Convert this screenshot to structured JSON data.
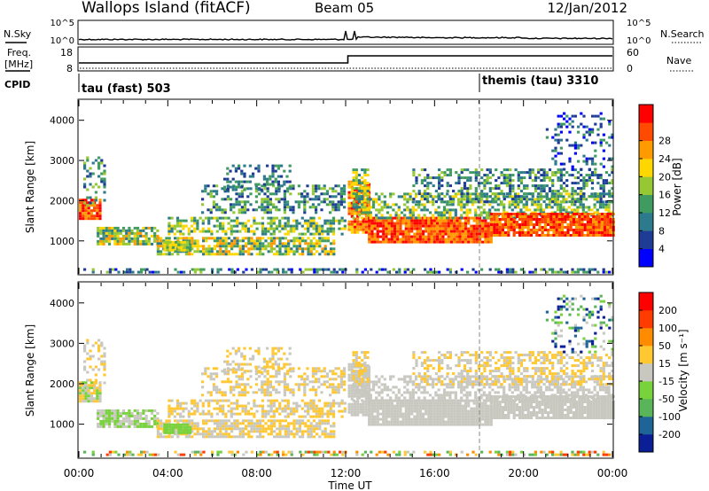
{
  "header": {
    "station": "Wallops Island (fitACF)",
    "beam": "Beam 05",
    "date": "12/Jan/2012"
  },
  "noise_panel": {
    "left_label": "N.Sky",
    "right_label": "N.Search",
    "ticks_left": [
      "10^5",
      "10^0"
    ],
    "ticks_right": [
      "10^5",
      "10^0"
    ]
  },
  "freq_panel": {
    "label_top": "Freq.",
    "label_bottom": "[MHz]",
    "ticks_left": [
      "18",
      "8"
    ],
    "ticks_right": [
      "60",
      "0"
    ],
    "right_label": "Nave"
  },
  "cpid_panel": {
    "label": "CPID",
    "programs": [
      {
        "name": "tau (fast) 503",
        "start_hour": 0
      },
      {
        "name": "themis (tau) 3310",
        "start_hour": 18
      }
    ]
  },
  "chart_data": [
    {
      "type": "heatmap",
      "panel": "power",
      "ylabel": "Slant Range [km]",
      "xlabel": "",
      "xlim_hours": [
        0,
        24
      ],
      "ylim_km": [
        180,
        4500
      ],
      "yticks": [
        1000,
        2000,
        3000,
        4000
      ],
      "colorbar": {
        "label": "Power [dB]",
        "ticks": [
          "4",
          "8",
          "12",
          "16",
          "20",
          "24",
          "28"
        ],
        "colors": [
          "#0000ff",
          "#1e3c96",
          "#2d7a8c",
          "#3f9b5f",
          "#95c832",
          "#ffd700",
          "#ff9b00",
          "#ff4a00",
          "#ff0000"
        ]
      }
    },
    {
      "type": "heatmap",
      "panel": "velocity",
      "ylabel": "Slant Range [km]",
      "xlabel": "Time UT",
      "xlim_hours": [
        0,
        24
      ],
      "ylim_km": [
        180,
        4500
      ],
      "yticks": [
        1000,
        2000,
        3000,
        4000
      ],
      "xtick_labels": [
        "00:00",
        "04:00",
        "08:00",
        "12:00",
        "16:00",
        "20:00",
        "00:00"
      ],
      "colorbar": {
        "label": "Velocity [m s⁻¹]",
        "ticks": [
          "200",
          "100",
          "50",
          "15",
          "-15",
          "-50",
          "-100",
          "-200"
        ],
        "colors": [
          "#0a1e96",
          "#1e6496",
          "#5ab45a",
          "#78d23c",
          "#c8c8c0",
          "#ffc832",
          "#ff8c00",
          "#ff3c00",
          "#ff0000"
        ]
      }
    }
  ]
}
